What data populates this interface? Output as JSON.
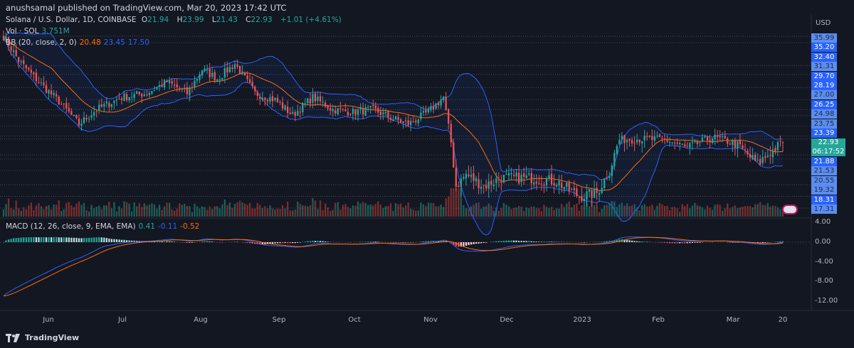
{
  "header": {
    "publisher": "anushsamal published on TradingView.com, Mar 20, 2023 17:42 UTC"
  },
  "symbol": {
    "name": "Solana / U.S. Dollar, 1D, COINBASE",
    "o_label": "O",
    "o": "21.94",
    "h_label": "H",
    "h": "23.99",
    "l_label": "L",
    "l": "21.43",
    "c_label": "C",
    "c": "22.93",
    "change": "+1.01 (+4.61%)"
  },
  "volume": {
    "label": "Vol · SOL",
    "value": "3.751M"
  },
  "bb": {
    "label": "BB (20, close, 2, 0)",
    "basis": "20.48",
    "upper": "23.45",
    "lower": "17.50"
  },
  "macd": {
    "label": "MACD (12, 26, close, 9, EMA, EMA)",
    "hist": "0.41",
    "macd": "-0.11",
    "signal": "-0.52"
  },
  "price_axis": {
    "currency": "USD",
    "levels": [
      {
        "v": "35.99",
        "s": "lt"
      },
      {
        "v": "35.20",
        "s": "dk"
      },
      {
        "v": "32.40",
        "s": "dk"
      },
      {
        "v": "31.31",
        "s": "lt"
      },
      {
        "v": "29.70",
        "s": "dk"
      },
      {
        "v": "28.19",
        "s": "dk"
      },
      {
        "v": "27.00",
        "s": "lt"
      },
      {
        "v": "26.25",
        "s": "dk"
      },
      {
        "v": "24.98",
        "s": "lt"
      },
      {
        "v": "23.75",
        "s": "lt"
      },
      {
        "v": "23.39",
        "s": "dk"
      },
      {
        "v": "21.88",
        "s": "dk"
      },
      {
        "v": "21.53",
        "s": "lt"
      },
      {
        "v": "20.55",
        "s": "lt"
      },
      {
        "v": "19.32",
        "s": "lt"
      },
      {
        "v": "18.31",
        "s": "dk"
      },
      {
        "v": "17.31",
        "s": "lt"
      }
    ],
    "current_price": "22.93",
    "countdown": "06:17:52"
  },
  "macd_axis": [
    "4.00",
    "0.00",
    "-4.00",
    "-8.00",
    "-12.00"
  ],
  "time_axis": [
    "Jun",
    "Jul",
    "Aug",
    "Sep",
    "Oct",
    "Nov",
    "Dec",
    "2023",
    "Feb",
    "Mar",
    "20"
  ],
  "footer": {
    "brand": "TradingView"
  },
  "colors": {
    "up": "#26a69a",
    "down": "#ef5350",
    "bb_band": "#2962ff",
    "bb_basis": "#ff6d00",
    "macd": "#2962ff",
    "signal": "#ff6d00"
  },
  "chart_data": {
    "type": "candlestick",
    "symbol": "SOLUSD",
    "interval": "1D",
    "approx_closes": [
      [
        "2022-05-14",
        36
      ],
      [
        "2022-05-20",
        33
      ],
      [
        "2022-05-28",
        30.4
      ],
      [
        "2022-06-05",
        28
      ],
      [
        "2022-06-13",
        25.2
      ],
      [
        "2022-06-20",
        27
      ],
      [
        "2022-06-30",
        28.5
      ],
      [
        "2022-07-10",
        29
      ],
      [
        "2022-07-18",
        30.4
      ],
      [
        "2022-07-26",
        29
      ],
      [
        "2022-08-01",
        31.9
      ],
      [
        "2022-08-07",
        30.8
      ],
      [
        "2022-08-14",
        32.6
      ],
      [
        "2022-08-22",
        29
      ],
      [
        "2022-08-30",
        28.2
      ],
      [
        "2022-09-06",
        26.3
      ],
      [
        "2022-09-14",
        28.5
      ],
      [
        "2022-09-22",
        27
      ],
      [
        "2022-09-30",
        26.7
      ],
      [
        "2022-10-08",
        27
      ],
      [
        "2022-10-15",
        26
      ],
      [
        "2022-10-22",
        25.2
      ],
      [
        "2022-10-30",
        26.7
      ],
      [
        "2022-11-05",
        28.5
      ],
      [
        "2022-11-08",
        23
      ],
      [
        "2022-11-10",
        19.2
      ],
      [
        "2022-11-14",
        20.2
      ],
      [
        "2022-11-21",
        19.2
      ],
      [
        "2022-11-28",
        19.9
      ],
      [
        "2022-12-10",
        19.9
      ],
      [
        "2022-12-20",
        19.6
      ],
      [
        "2022-12-29",
        18.3
      ],
      [
        "2023-01-05",
        18.6
      ],
      [
        "2023-01-10",
        20.5
      ],
      [
        "2023-01-14",
        23.3
      ],
      [
        "2023-01-22",
        23.4
      ],
      [
        "2023-02-01",
        23.3
      ],
      [
        "2023-02-10",
        22.4
      ],
      [
        "2023-02-20",
        23.6
      ],
      [
        "2023-03-01",
        22.9
      ],
      [
        "2023-03-10",
        21.1
      ],
      [
        "2023-03-15",
        22.1
      ],
      [
        "2023-03-20",
        22.93
      ]
    ]
  }
}
